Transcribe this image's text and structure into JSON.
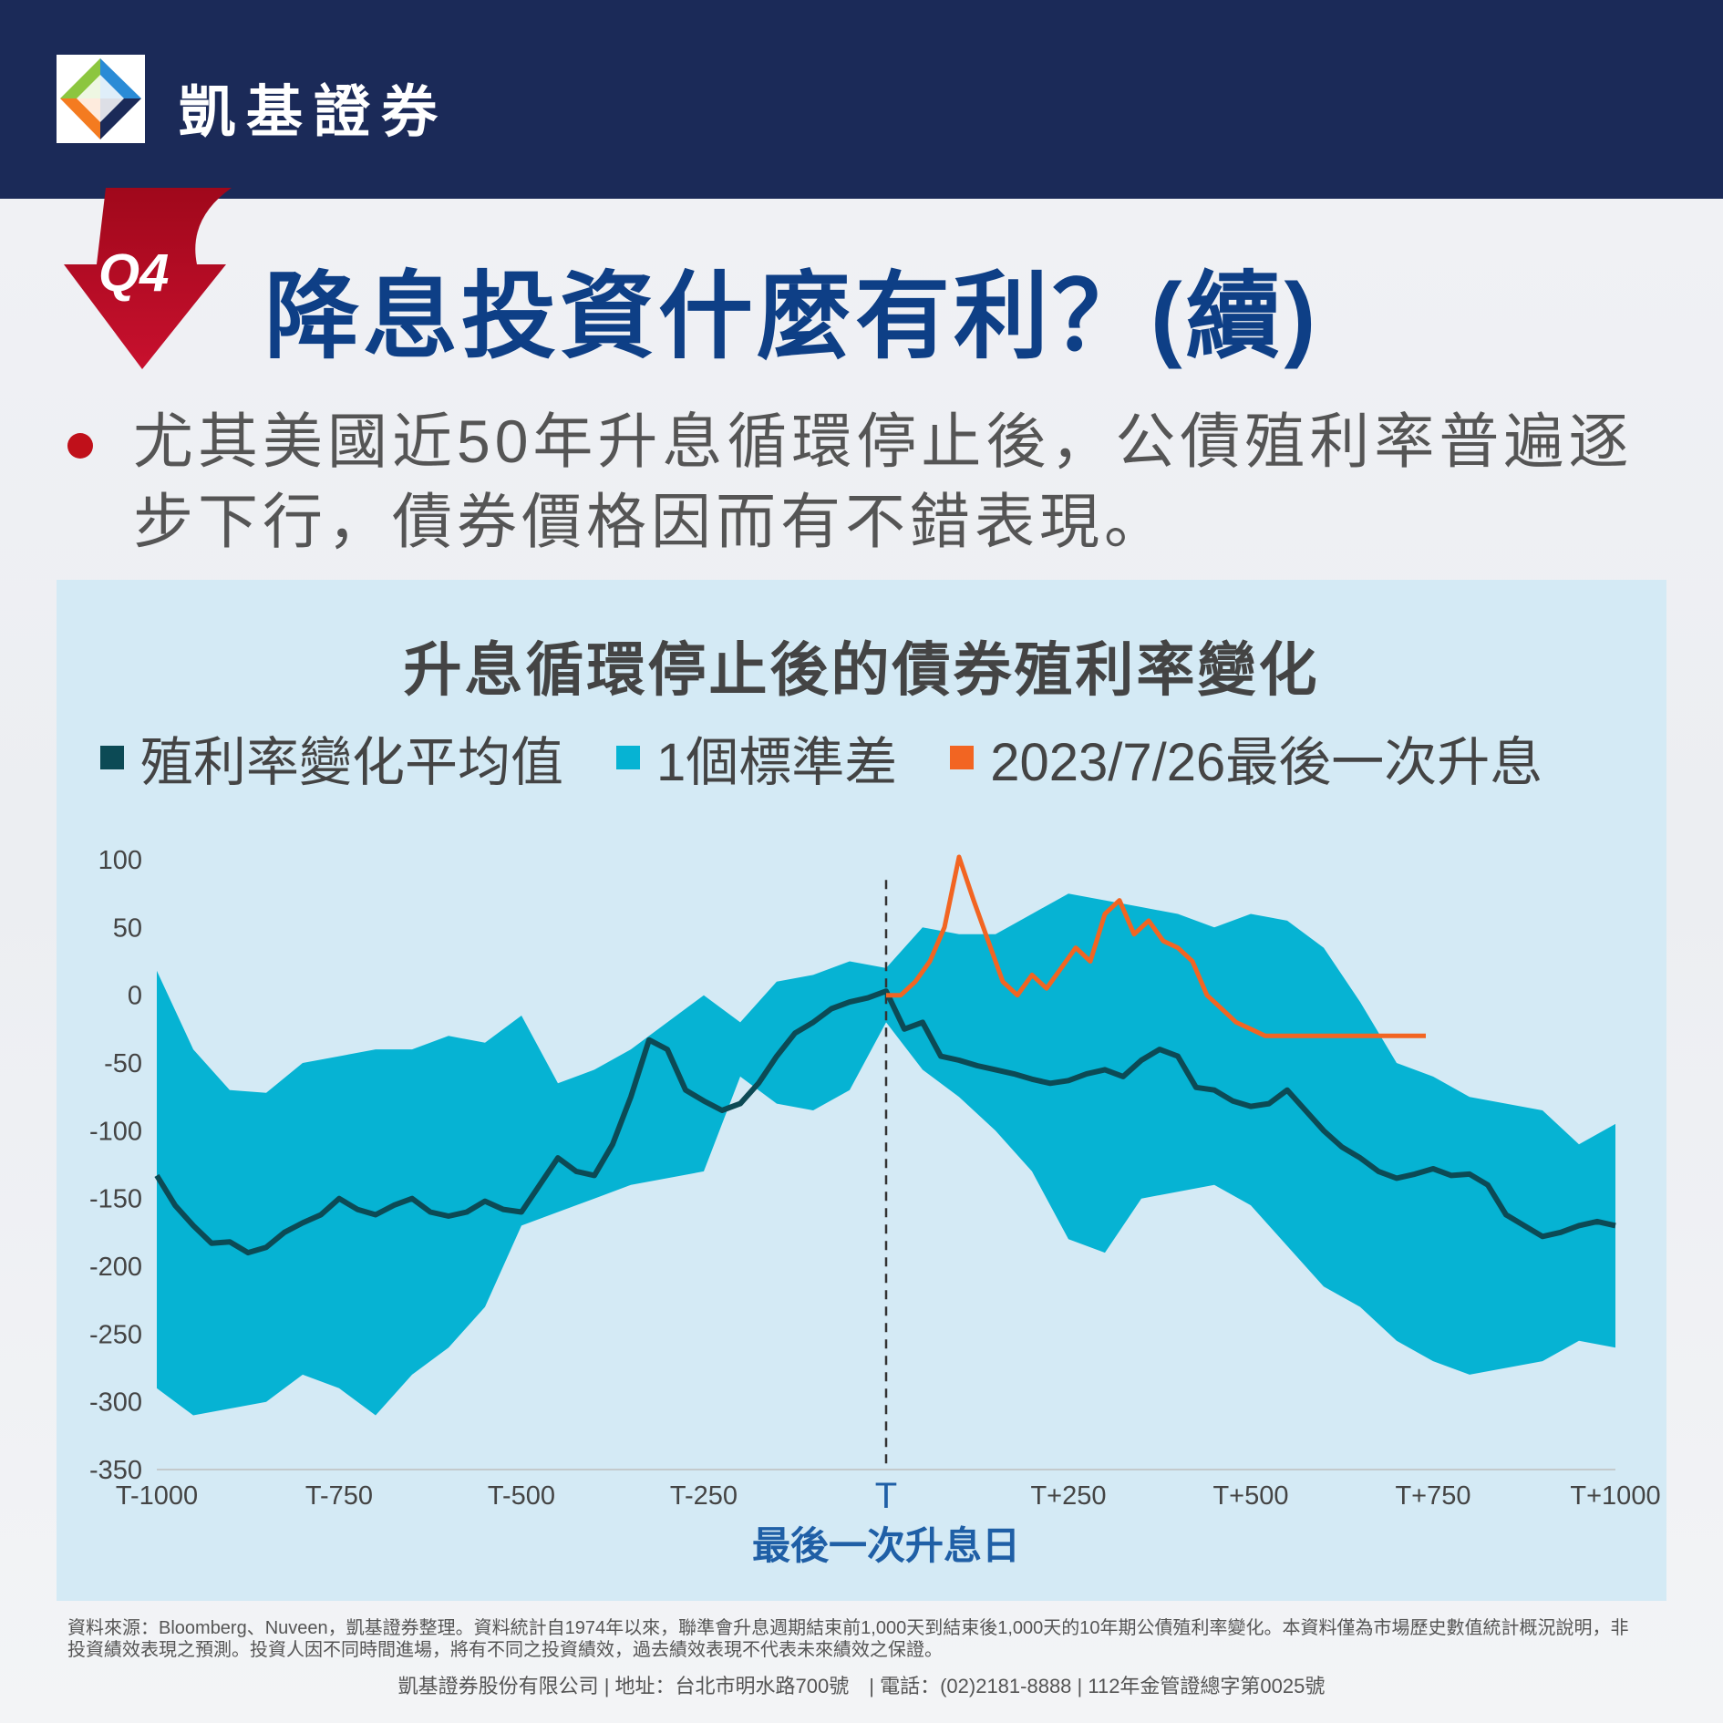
{
  "brand": {
    "name": "凱基證券"
  },
  "headline": {
    "badge": "Q4",
    "title": "降息投資什麼有利？(續)"
  },
  "bullet": {
    "text": "尤其美國近50年升息循環停止後，公債殖利率普遍逐步下行，債券價格因而有不錯表現。"
  },
  "colors": {
    "header": "#1b2a58",
    "accent_red": "#c0101a",
    "title_blue": "#0e3f86",
    "mean_line": "#0c4a55",
    "band": "#06b3d3",
    "latest": "#f26522",
    "panel": "#d4eaf5"
  },
  "chart_data": {
    "type": "line",
    "title": "升息循環停止後的債券殖利率變化",
    "legend": [
      {
        "label": "殖利率變化平均值",
        "color": "#0c4a55"
      },
      {
        "label": "1個標準差",
        "color": "#06b3d3"
      },
      {
        "label": "2023/7/26最後一次升息",
        "color": "#f26522"
      }
    ],
    "xlabel": "最後一次升息日",
    "x_tick_labels": [
      "T-1000",
      "T-750",
      "T-500",
      "T-250",
      "T",
      "T+250",
      "T+500",
      "T+750",
      "T+1000"
    ],
    "x_tick_values": [
      -1000,
      -750,
      -500,
      -250,
      0,
      250,
      500,
      750,
      1000
    ],
    "xlim": [
      -1000,
      1000
    ],
    "y_tick_labels": [
      "100",
      "50",
      "0",
      "-50",
      "-100",
      "-150",
      "-200",
      "-250",
      "-300",
      "-350"
    ],
    "ylim": [
      -350,
      100
    ],
    "grid": false,
    "reference_line": {
      "x": 0,
      "style": "dashed",
      "label": "T"
    },
    "series": [
      {
        "name": "殖利率變化平均值",
        "x": [
          -1000,
          -975,
          -950,
          -925,
          -900,
          -875,
          -850,
          -825,
          -800,
          -775,
          -750,
          -725,
          -700,
          -675,
          -650,
          -625,
          -600,
          -575,
          -550,
          -525,
          -500,
          -475,
          -450,
          -425,
          -400,
          -375,
          -350,
          -325,
          -300,
          -275,
          -250,
          -225,
          -200,
          -175,
          -150,
          -125,
          -100,
          -75,
          -50,
          -25,
          0,
          25,
          50,
          75,
          100,
          125,
          150,
          175,
          200,
          225,
          250,
          275,
          300,
          325,
          350,
          375,
          400,
          425,
          450,
          475,
          500,
          525,
          550,
          575,
          600,
          625,
          650,
          675,
          700,
          725,
          750,
          775,
          800,
          825,
          850,
          875,
          900,
          925,
          950,
          975,
          1000
        ],
        "values": [
          -133,
          -155,
          -170,
          -183,
          -182,
          -190,
          -186,
          -175,
          -168,
          -162,
          -150,
          -158,
          -162,
          -155,
          -150,
          -160,
          -163,
          -160,
          -152,
          -158,
          -160,
          -140,
          -120,
          -130,
          -133,
          -110,
          -75,
          -33,
          -40,
          -70,
          -78,
          -85,
          -80,
          -65,
          -45,
          -28,
          -20,
          -10,
          -5,
          -2,
          3,
          -25,
          -20,
          -45,
          -48,
          -52,
          -55,
          -58,
          -62,
          -65,
          -63,
          -58,
          -55,
          -60,
          -48,
          -40,
          -45,
          -68,
          -70,
          -78,
          -82,
          -80,
          -70,
          -85,
          -100,
          -112,
          -120,
          -130,
          -135,
          -132,
          -128,
          -133,
          -132,
          -140,
          -162,
          -170,
          -178,
          -175,
          -170,
          -167,
          -170
        ]
      },
      {
        "name": "1個標準差",
        "x": [
          -1000,
          -950,
          -900,
          -850,
          -800,
          -750,
          -700,
          -650,
          -600,
          -550,
          -500,
          -450,
          -400,
          -350,
          -300,
          -250,
          -200,
          -150,
          -100,
          -50,
          0,
          50,
          100,
          150,
          200,
          250,
          300,
          350,
          400,
          450,
          500,
          550,
          600,
          650,
          700,
          750,
          800,
          850,
          900,
          950,
          1000
        ],
        "upper": [
          18,
          -40,
          -70,
          -72,
          -50,
          -45,
          -40,
          -40,
          -30,
          -35,
          -15,
          -65,
          -55,
          -40,
          -20,
          0,
          -20,
          10,
          15,
          25,
          20,
          50,
          45,
          45,
          60,
          75,
          70,
          65,
          60,
          50,
          60,
          55,
          35,
          -5,
          -50,
          -60,
          -75,
          -80,
          -85,
          -110,
          -95
        ],
        "lower": [
          -290,
          -310,
          -305,
          -300,
          -280,
          -290,
          -310,
          -280,
          -260,
          -230,
          -170,
          -160,
          -150,
          -140,
          -135,
          -130,
          -60,
          -80,
          -85,
          -70,
          -20,
          -55,
          -75,
          -100,
          -130,
          -180,
          -190,
          -150,
          -145,
          -140,
          -155,
          -185,
          -215,
          -230,
          -255,
          -270,
          -280,
          -275,
          -270,
          -255,
          -260
        ]
      },
      {
        "name": "2023/7/26最後一次升息",
        "x": [
          0,
          20,
          40,
          60,
          80,
          100,
          120,
          140,
          160,
          180,
          200,
          220,
          240,
          260,
          280,
          300,
          320,
          340,
          360,
          380,
          400,
          420,
          440,
          460,
          480,
          500,
          520,
          540,
          560,
          580,
          600,
          620,
          640,
          660,
          680,
          700,
          720,
          740
        ],
        "values": [
          0,
          0,
          10,
          25,
          50,
          102,
          70,
          40,
          10,
          0,
          15,
          5,
          20,
          35,
          25,
          60,
          70,
          45,
          55,
          40,
          35,
          25,
          0,
          -10,
          -20,
          -25,
          -30,
          -30,
          -30,
          -30,
          -30,
          -30,
          -30,
          -30,
          -30,
          -30,
          -30,
          -30
        ]
      }
    ]
  },
  "footnote": "資料來源：Bloomberg、Nuveen，凱基證券整理。資料統計自1974年以來，聯準會升息週期結束前1,000天到結束後1,000天的10年期公債殖利率變化。本資料僅為市場歷史數值統計概況說明，非投資績效表現之預測。投資人因不同時間進場，將有不同之投資績效，過去績效表現不代表未來績效之保證。",
  "footer": "凱基證券股份有限公司 | 地址：台北市明水路700號　| 電話：(02)2181-8888 | 112年金管證總字第0025號"
}
